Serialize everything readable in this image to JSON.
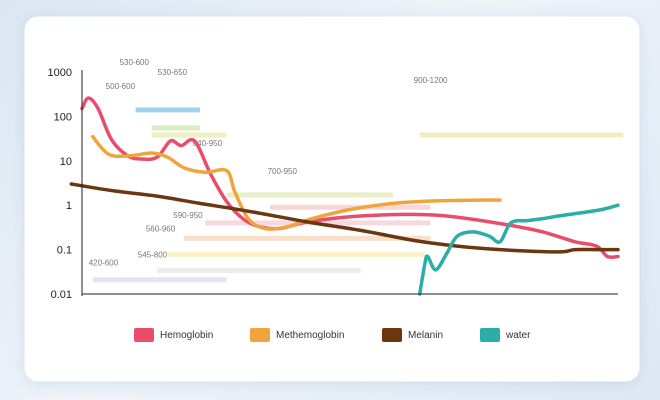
{
  "chart_data": {
    "type": "line",
    "y_scale": "log",
    "ylim": [
      0.01,
      1000
    ],
    "y_ticks": [
      "1000",
      "100",
      "10",
      "1",
      "0.1",
      "0.01"
    ],
    "xlabel": "",
    "ylabel": "",
    "grid": false,
    "legend_position": "bottom",
    "series": [
      {
        "name": "Hemoglobin",
        "color": "#e94d6c",
        "points": [
          [
            0,
            150
          ],
          [
            0.012,
            260
          ],
          [
            0.03,
            150
          ],
          [
            0.055,
            30
          ],
          [
            0.085,
            13
          ],
          [
            0.11,
            11
          ],
          [
            0.14,
            12
          ],
          [
            0.165,
            28
          ],
          [
            0.185,
            22
          ],
          [
            0.21,
            28
          ],
          [
            0.24,
            5
          ],
          [
            0.27,
            1.2
          ],
          [
            0.3,
            0.5
          ],
          [
            0.33,
            0.33
          ],
          [
            0.37,
            0.3
          ],
          [
            0.42,
            0.42
          ],
          [
            0.5,
            0.55
          ],
          [
            0.6,
            0.62
          ],
          [
            0.66,
            0.6
          ],
          [
            0.72,
            0.5
          ],
          [
            0.8,
            0.35
          ],
          [
            0.86,
            0.25
          ],
          [
            0.92,
            0.15
          ],
          [
            0.96,
            0.12
          ],
          [
            0.98,
            0.07
          ],
          [
            1.0,
            0.07
          ]
        ]
      },
      {
        "name": "Methemoglobin",
        "color": "#f1a43c",
        "points": [
          [
            0.02,
            35
          ],
          [
            0.05,
            14
          ],
          [
            0.09,
            13
          ],
          [
            0.13,
            15
          ],
          [
            0.16,
            12
          ],
          [
            0.19,
            7
          ],
          [
            0.23,
            5.5
          ],
          [
            0.27,
            6
          ],
          [
            0.285,
            2
          ],
          [
            0.31,
            0.5
          ],
          [
            0.34,
            0.3
          ],
          [
            0.38,
            0.32
          ],
          [
            0.43,
            0.5
          ],
          [
            0.5,
            0.8
          ],
          [
            0.58,
            1.1
          ],
          [
            0.66,
            1.25
          ],
          [
            0.74,
            1.3
          ],
          [
            0.78,
            1.3
          ]
        ]
      },
      {
        "name": "Melanin",
        "color": "#6b3710",
        "points": [
          [
            -0.02,
            3
          ],
          [
            0.06,
            2.1
          ],
          [
            0.14,
            1.6
          ],
          [
            0.22,
            1.1
          ],
          [
            0.32,
            0.7
          ],
          [
            0.42,
            0.42
          ],
          [
            0.52,
            0.27
          ],
          [
            0.62,
            0.16
          ],
          [
            0.7,
            0.12
          ],
          [
            0.78,
            0.1
          ],
          [
            0.86,
            0.09
          ],
          [
            0.9,
            0.09
          ],
          [
            0.92,
            0.1
          ],
          [
            0.96,
            0.1
          ],
          [
            1.0,
            0.1
          ]
        ]
      },
      {
        "name": "water",
        "color": "#2bada8",
        "points": [
          [
            0.63,
            0.01
          ],
          [
            0.64,
            0.05
          ],
          [
            0.645,
            0.07
          ],
          [
            0.66,
            0.035
          ],
          [
            0.68,
            0.08
          ],
          [
            0.7,
            0.2
          ],
          [
            0.73,
            0.25
          ],
          [
            0.76,
            0.2
          ],
          [
            0.78,
            0.15
          ],
          [
            0.8,
            0.4
          ],
          [
            0.83,
            0.45
          ],
          [
            0.86,
            0.5
          ],
          [
            0.9,
            0.6
          ],
          [
            0.94,
            0.7
          ],
          [
            0.97,
            0.8
          ],
          [
            1.0,
            1.0
          ]
        ]
      }
    ],
    "ranges": [
      {
        "label": "530-600",
        "color": "#9ed3ee",
        "x0": 0.1,
        "x1": 0.22,
        "y": 140,
        "label_dx": -16,
        "label_dy": -45
      },
      {
        "label": "530-650",
        "color": "#dcecc0",
        "x0": 0.13,
        "x1": 0.22,
        "y": 55,
        "label_dx": 6,
        "label_dy": -53
      },
      {
        "label": "500-600",
        "color": "#edf0c2",
        "x0": 0.13,
        "x1": 0.27,
        "y": 38,
        "label_dx": -46,
        "label_dy": -46
      },
      {
        "label": "900-1200",
        "color": "#eef0b9",
        "x0": 0.63,
        "x1": 1.01,
        "y": 38,
        "label_dx": -6,
        "label_dy": -52
      },
      {
        "label": "640-950",
        "color": "#e8efc6",
        "x0": 0.27,
        "x1": 0.58,
        "y": 1.7,
        "label_dx": -34,
        "label_dy": -49
      },
      {
        "label": "700-950",
        "color": "#f8d7d9",
        "x0": 0.35,
        "x1": 0.65,
        "y": 0.9,
        "label_dx": -2,
        "label_dy": -33
      },
      {
        "label": "590-950",
        "color": "#f5d9df",
        "x0": 0.23,
        "x1": 0.65,
        "y": 0.4,
        "label_dx": -32,
        "label_dy": -5
      },
      {
        "label": "560-960",
        "color": "#fae0c8",
        "x0": 0.19,
        "x1": 0.65,
        "y": 0.18,
        "label_dx": -38,
        "label_dy": -7
      },
      {
        "label": "545-800",
        "color": "#fbf1c8",
        "x0": 0.16,
        "x1": 0.64,
        "y": 0.078,
        "label_dx": -30,
        "label_dy": 3
      },
      {
        "label": "420-600",
        "color": "#e8e3f1",
        "x0": 0.02,
        "x1": 0.27,
        "y": 0.021,
        "label_dx": -4,
        "label_dy": -14
      },
      {
        "label": "",
        "color": "#ededed",
        "x0": 0.14,
        "x1": 0.52,
        "y": 0.034,
        "label_dx": 0,
        "label_dy": 0
      }
    ]
  }
}
